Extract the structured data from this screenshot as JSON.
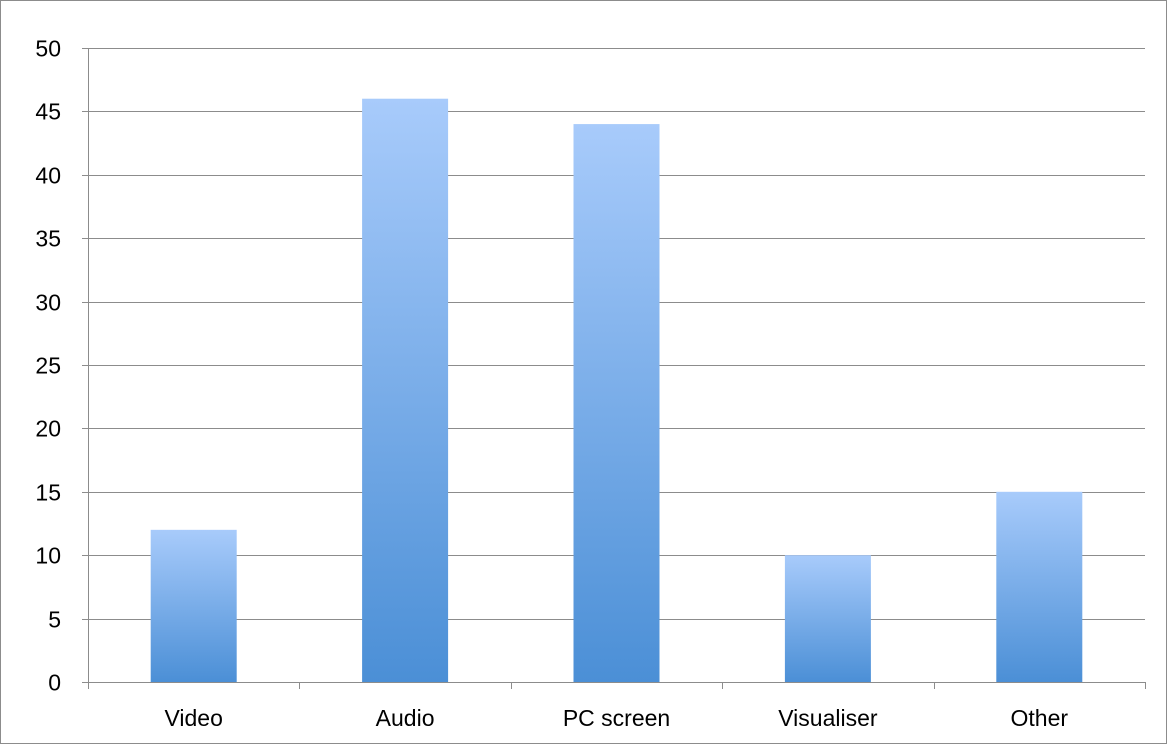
{
  "chart_data": {
    "type": "bar",
    "categories": [
      "Video",
      "Audio",
      "PC screen",
      "Visualiser",
      "Other"
    ],
    "values": [
      12,
      46,
      44,
      10,
      15
    ],
    "title": "",
    "xlabel": "",
    "ylabel": "",
    "ylim": [
      0,
      50
    ],
    "yticks": [
      0,
      5,
      10,
      15,
      20,
      25,
      30,
      35,
      40,
      45,
      50
    ],
    "grid": true,
    "legend": "none",
    "colors": {
      "bar_top": "#a8cbfb",
      "bar_bottom": "#4b8fd6",
      "grid": "#8c8c8c",
      "axis": "#8c8c8c"
    }
  }
}
